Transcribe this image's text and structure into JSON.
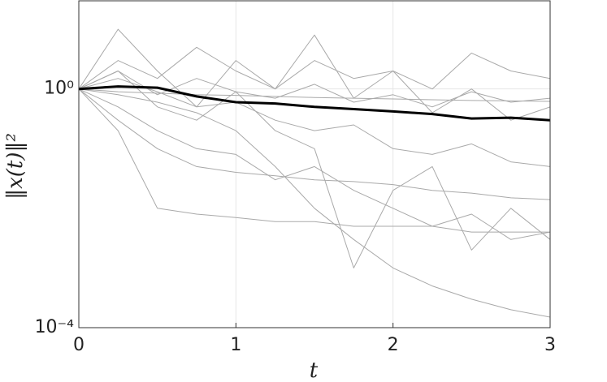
{
  "chart_data": {
    "type": "line",
    "x_label": "t",
    "y_label": "‖x(t)‖²",
    "x": [
      0,
      0.25,
      0.5,
      0.75,
      1,
      1.25,
      1.5,
      1.75,
      2,
      2.25,
      2.5,
      2.75,
      3
    ],
    "series": [
      {
        "color": "#a9a9a9",
        "values": [
          1,
          2,
          0.8,
          1.5,
          0.9,
          0.7,
          1.2,
          0.6,
          0.8,
          0.5,
          0.9,
          0.6,
          0.7
        ]
      },
      {
        "color": "#a9a9a9",
        "values": [
          1,
          0.5,
          0.2,
          0.1,
          0.08,
          0.03,
          0.05,
          0.02,
          0.01,
          0.005,
          0.008,
          0.003,
          0.004
        ]
      },
      {
        "color": "#a9a9a9",
        "values": [
          1,
          3,
          1.5,
          5,
          2,
          1,
          3,
          1.5,
          2,
          1,
          4,
          2,
          1.5
        ]
      },
      {
        "color": "#a9a9a9",
        "values": [
          1,
          0.3,
          0.1,
          0.05,
          0.04,
          0.035,
          0.03,
          0.028,
          0.025,
          0.02,
          0.018,
          0.015,
          0.014
        ]
      },
      {
        "color": "#a9a9a9",
        "values": [
          1,
          0.8,
          0.6,
          0.4,
          0.2,
          0.05,
          0.01,
          0.003,
          0.001,
          0.0005,
          0.0003,
          0.0002,
          0.00015
        ]
      },
      {
        "color": "#a9a9a9",
        "values": [
          1,
          1.5,
          0.9,
          0.5,
          0.6,
          0.3,
          0.2,
          0.25,
          0.1,
          0.08,
          0.12,
          0.06,
          0.05
        ]
      },
      {
        "color": "#a9a9a9",
        "values": [
          1,
          0.9,
          0.85,
          0.8,
          0.78,
          0.75,
          0.72,
          0.7,
          0.68,
          0.66,
          0.64,
          0.63,
          0.62
        ]
      },
      {
        "color": "#a9a9a9",
        "values": [
          1,
          0.2,
          0.01,
          0.008,
          0.007,
          0.006,
          0.006,
          0.005,
          0.005,
          0.005,
          0.004,
          0.004,
          0.004
        ]
      },
      {
        "color": "#a9a9a9",
        "values": [
          1,
          2,
          0.5,
          0.3,
          0.9,
          0.2,
          0.1,
          0.001,
          0.02,
          0.05,
          0.002,
          0.01,
          0.003
        ]
      },
      {
        "color": "#a9a9a9",
        "values": [
          1,
          10,
          2,
          0.5,
          3,
          1,
          8,
          0.7,
          2,
          0.4,
          1,
          0.3,
          0.5
        ]
      },
      {
        "color": "#000000",
        "width": 3,
        "values": [
          1,
          1.1,
          1.05,
          0.75,
          0.6,
          0.57,
          0.5,
          0.46,
          0.42,
          0.38,
          0.32,
          0.33,
          0.3
        ]
      }
    ],
    "xlim": [
      0,
      3
    ],
    "xticks": [
      0,
      1,
      2,
      3
    ],
    "ylim": [
      0.0001,
      30
    ],
    "log_y": true,
    "yticks": [
      {
        "value": 0.0001,
        "label": "10⁻⁴"
      },
      {
        "value": 1,
        "label": "10⁰"
      }
    ],
    "grid": true
  }
}
